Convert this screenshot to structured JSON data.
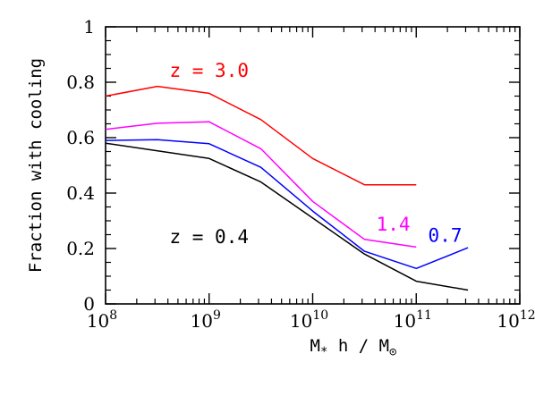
{
  "chart_data": {
    "type": "line",
    "xlabel": "M",
    "xlabel_sub": "*",
    "xlabel_rest": " h / M",
    "xlabel_sub2": "⊙",
    "ylabel": "Fraction with cooling",
    "xscale": "log",
    "xlim": [
      100000000,
      1000000000000
    ],
    "ylim": [
      0,
      1
    ],
    "x_ticks": [
      {
        "exp": 8,
        "base": "10",
        "sup": "8"
      },
      {
        "exp": 9,
        "base": "10",
        "sup": "9"
      },
      {
        "exp": 10,
        "base": "10",
        "sup": "10"
      },
      {
        "exp": 11,
        "base": "10",
        "sup": "11"
      },
      {
        "exp": 12,
        "base": "10",
        "sup": "12"
      }
    ],
    "y_ticks": [
      {
        "value": 0,
        "label": "0"
      },
      {
        "value": 0.2,
        "label": "0.2"
      },
      {
        "value": 0.4,
        "label": "0.4"
      },
      {
        "value": 0.6,
        "label": "0.6"
      },
      {
        "value": 0.8,
        "label": "0.8"
      },
      {
        "value": 1,
        "label": "1"
      }
    ],
    "grid": false,
    "series": [
      {
        "label": "z = 3.0",
        "color": "#ff0000",
        "x": [
          100000000,
          316227766,
          1000000000,
          3162277660,
          10000000000,
          31622776600,
          100000000000
        ],
        "y": [
          0.75,
          0.785,
          0.76,
          0.665,
          0.525,
          0.43,
          0.43
        ]
      },
      {
        "label": "1.4",
        "color": "#ff00ff",
        "x": [
          100000000,
          316227766,
          1000000000,
          3162277660,
          10000000000,
          31622776600,
          100000000000
        ],
        "y": [
          0.63,
          0.652,
          0.657,
          0.56,
          0.37,
          0.233,
          0.205
        ]
      },
      {
        "label": "0.7",
        "color": "#0000ff",
        "x": [
          100000000,
          316227766,
          1000000000,
          3162277660,
          10000000000,
          31622776600,
          100000000000,
          316227766000
        ],
        "y": [
          0.59,
          0.593,
          0.578,
          0.493,
          0.335,
          0.19,
          0.128,
          0.203
        ]
      },
      {
        "label": "z = 0.4",
        "color": "#000000",
        "x": [
          100000000,
          1000000000,
          3162277660,
          10000000000,
          31622776600,
          100000000000,
          316227766000
        ],
        "y": [
          0.58,
          0.525,
          0.44,
          0.31,
          0.18,
          0.082,
          0.05
        ]
      }
    ],
    "annotations": [
      {
        "text": "z = 3.0",
        "color": "#ff0000",
        "x": 1000000000,
        "y": 0.82
      },
      {
        "text": "1.4",
        "color": "#ff00ff",
        "x": 60000000000,
        "y": 0.265
      },
      {
        "text": "0.7",
        "color": "#0000ff",
        "x": 190000000000,
        "y": 0.225
      },
      {
        "text": "z = 0.4",
        "color": "#000000",
        "x": 1000000000,
        "y": 0.22
      }
    ]
  }
}
